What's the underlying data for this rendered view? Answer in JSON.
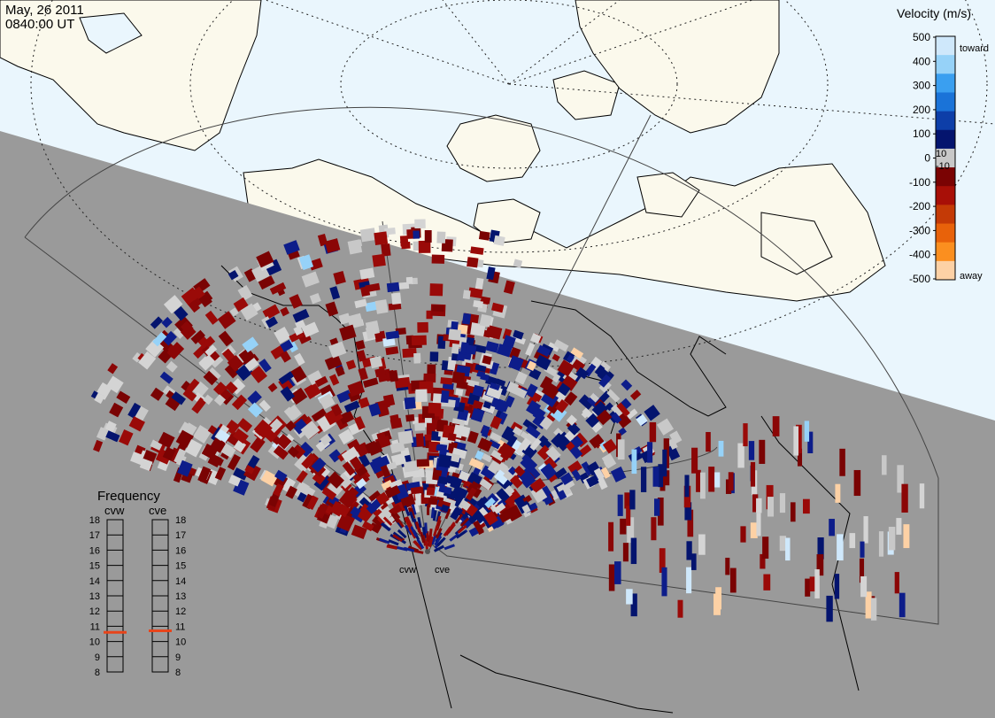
{
  "header": {
    "date": "May, 26 2011",
    "time": "0840:00 UT"
  },
  "colorbar": {
    "title": "Velocity (m/s)",
    "toward_label": "toward",
    "away_label": "away",
    "left_ticks": [
      "500",
      "400",
      "300",
      "200",
      "100",
      "0",
      "-100",
      "-200",
      "-300",
      "-400",
      "-500"
    ],
    "small_ticks": [
      "10",
      "-10"
    ],
    "colors": [
      "#cfe8fb",
      "#96d2f8",
      "#3a9ff0",
      "#1a73d8",
      "#0d3ea8",
      "#04146e",
      "#c8c8c8",
      "#7a0303",
      "#a80f07",
      "#c43a06",
      "#e8620a",
      "#fb8f1f",
      "#fdd1a5"
    ]
  },
  "frequency": {
    "title": "Frequency",
    "radars": [
      {
        "code": "cvw",
        "value_mhz": 10.6
      },
      {
        "code": "cve",
        "value_mhz": 10.7
      }
    ],
    "scale": [
      "18",
      "17",
      "16",
      "15",
      "14",
      "13",
      "12",
      "11",
      "10",
      "9",
      "8"
    ],
    "indicator_color": "#e8441a"
  },
  "radar_sites": [
    {
      "code": "cvw"
    },
    {
      "code": "cve"
    }
  ],
  "map": {
    "night_color": "#9a9a9a",
    "day_ocean_color": "#eaf6fd",
    "day_land_color": "#fbf9ec",
    "ground_scatter_color": "#c8c8c8"
  }
}
